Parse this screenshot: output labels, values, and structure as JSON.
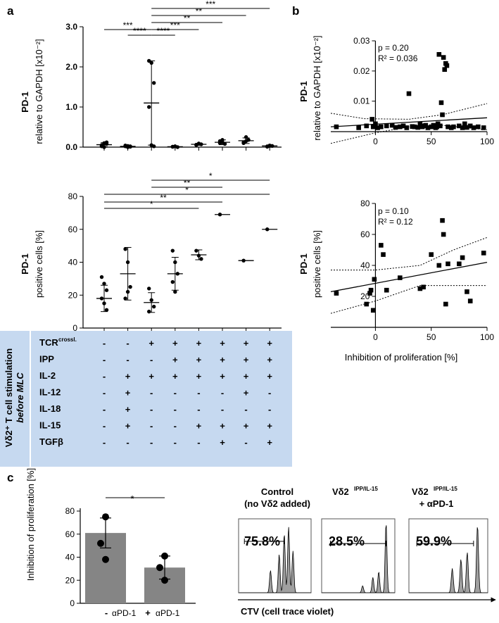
{
  "panels": {
    "a": "a",
    "b": "b",
    "c": "c"
  },
  "chart_data": [
    {
      "id": "a1",
      "type": "scatter",
      "title": "",
      "ylabel_bold": "PD-1",
      "ylabel": "relative to GAPDH [x10⁻²]",
      "yticks": [
        "0.0",
        "1.0",
        "2.0",
        "3.0"
      ],
      "ylim": [
        0,
        3.0
      ],
      "groups": [
        {
          "points": [
            0.05,
            0.1,
            0.12,
            0.02,
            0.0,
            0.08,
            0.03
          ],
          "mean": 0.06,
          "sd": 0.05
        },
        {
          "points": [
            0.02,
            0.03,
            0.01,
            0.04,
            0.0,
            0.02
          ],
          "mean": 0.02,
          "sd": 0.02
        },
        {
          "points": [
            2.15,
            2.1,
            1.6,
            1.0,
            0.05,
            0.02
          ],
          "mean": 1.1,
          "sd": 1.05
        },
        {
          "points": [
            0.01,
            0.02,
            0.0,
            0.01,
            0.02
          ],
          "mean": 0.01,
          "sd": 0.01
        },
        {
          "points": [
            0.06,
            0.09,
            0.07,
            0.05,
            0.08
          ],
          "mean": 0.07,
          "sd": 0.02
        },
        {
          "points": [
            0.1,
            0.18,
            0.08,
            0.15,
            0.12
          ],
          "mean": 0.12,
          "sd": 0.06
        },
        {
          "points": [
            0.12,
            0.25,
            0.18,
            0.1,
            0.15
          ],
          "mean": 0.16,
          "sd": 0.07
        },
        {
          "points": [
            0.02,
            0.04,
            0.03,
            0.01,
            0.03
          ],
          "mean": 0.03,
          "sd": 0.01
        }
      ],
      "significance": [
        {
          "from": 1,
          "to": 3,
          "label": "***"
        },
        {
          "from": 2,
          "to": 3,
          "label": "****"
        },
        {
          "from": 3,
          "to": 4,
          "label": "****"
        },
        {
          "from": 3,
          "to": 5,
          "label": "***"
        },
        {
          "from": 3,
          "to": 6,
          "label": "**"
        },
        {
          "from": 3,
          "to": 7,
          "label": "**"
        },
        {
          "from": 3,
          "to": 8,
          "label": "***"
        }
      ]
    },
    {
      "id": "a2",
      "type": "scatter",
      "ylabel_bold": "PD-1",
      "ylabel": "positive cells [%]",
      "yticks": [
        "0",
        "20",
        "40",
        "60",
        "80"
      ],
      "ylim": [
        0,
        80
      ],
      "groups": [
        {
          "points": [
            31,
            27,
            23,
            18,
            15,
            11
          ],
          "mean": 18,
          "sd": 8
        },
        {
          "points": [
            48,
            40,
            25,
            18,
            22
          ],
          "mean": 33,
          "sd": 16
        },
        {
          "points": [
            24,
            17,
            13,
            10
          ],
          "mean": 15.5,
          "sd": 6
        },
        {
          "points": [
            47,
            40,
            33,
            28,
            22
          ],
          "mean": 33,
          "sd": 10
        },
        {
          "points": [
            47,
            44,
            42
          ],
          "mean": 44.5,
          "sd": 3
        },
        {
          "points": [
            69
          ],
          "mean": 69,
          "sd": 0
        },
        {
          "points": [
            41
          ],
          "mean": 41,
          "sd": 0
        },
        {
          "points": [
            60
          ],
          "mean": 60,
          "sd": 0
        }
      ],
      "significance": [
        {
          "from": 1,
          "to": 5,
          "label": "*"
        },
        {
          "from": 1,
          "to": 6,
          "label": "**"
        },
        {
          "from": 1,
          "to": 8,
          "label": "*"
        },
        {
          "from": 3,
          "to": 6,
          "label": "**"
        },
        {
          "from": 3,
          "to": 8,
          "label": "*"
        }
      ]
    },
    {
      "id": "b1",
      "type": "scatter",
      "ylabel_bold": "PD-1",
      "ylabel": "relative to GAPDH [x10⁻²]",
      "yticks": [
        "0.01",
        "0.02",
        "0.03"
      ],
      "xticks": [
        "0",
        "50",
        "100"
      ],
      "ylim": [
        -0.0015,
        0.03
      ],
      "xlim": [
        -40,
        100
      ],
      "annot_p": "p = 0.20",
      "annot_r": "R² = 0.036",
      "points": [
        [
          -35,
          0.0015
        ],
        [
          -15,
          0.0012
        ],
        [
          -8,
          0.0018
        ],
        [
          -3,
          0.004
        ],
        [
          -2,
          0.0015
        ],
        [
          0,
          0.0025
        ],
        [
          2,
          0.0012
        ],
        [
          5,
          0.0015
        ],
        [
          10,
          0.0018
        ],
        [
          15,
          0.002
        ],
        [
          18,
          0.0013
        ],
        [
          22,
          0.0015
        ],
        [
          25,
          0.0018
        ],
        [
          28,
          0.0012
        ],
        [
          30,
          0.0125
        ],
        [
          33,
          0.0016
        ],
        [
          35,
          0.0015
        ],
        [
          38,
          0.0013
        ],
        [
          40,
          0.0025
        ],
        [
          42,
          0.0015
        ],
        [
          44,
          0.0018
        ],
        [
          45,
          0.002
        ],
        [
          47,
          0.0012
        ],
        [
          50,
          0.0015
        ],
        [
          52,
          0.002
        ],
        [
          54,
          0.0012
        ],
        [
          55,
          0.0015
        ],
        [
          56,
          0.0025
        ],
        [
          57,
          0.0255
        ],
        [
          58,
          0.0018
        ],
        [
          59,
          0.0095
        ],
        [
          60,
          0.0055
        ],
        [
          61,
          0.0245
        ],
        [
          62,
          0.0205
        ],
        [
          63,
          0.0225
        ],
        [
          64,
          0.0218
        ],
        [
          65,
          0.0015
        ],
        [
          68,
          0.0012
        ],
        [
          70,
          0.0015
        ],
        [
          75,
          0.0018
        ],
        [
          78,
          0.0012
        ],
        [
          80,
          0.0025
        ],
        [
          82,
          0.0013
        ],
        [
          85,
          0.0018
        ],
        [
          88,
          0.0012
        ],
        [
          92,
          0.0015
        ],
        [
          97,
          0.0012
        ]
      ],
      "fit": [
        [
          -40,
          0.0015
        ],
        [
          100,
          0.0045
        ]
      ],
      "ci_upper": [
        [
          -40,
          0.006
        ],
        [
          -10,
          0.0042
        ],
        [
          30,
          0.004
        ],
        [
          60,
          0.0055
        ],
        [
          100,
          0.0092
        ]
      ],
      "ci_lower": [
        [
          -40,
          -0.004
        ],
        [
          0,
          -0.0005
        ],
        [
          30,
          0.0015
        ],
        [
          60,
          0.002
        ],
        [
          100,
          0.0005
        ]
      ]
    },
    {
      "id": "b2",
      "type": "scatter",
      "ylabel_bold": "PD-1",
      "ylabel": "positive cells [%]",
      "yticks": [
        "20",
        "40",
        "60",
        "80"
      ],
      "xticks": [
        "0",
        "50",
        "100"
      ],
      "ylim": [
        0,
        80
      ],
      "xlim": [
        -40,
        100
      ],
      "xlabel": "Inhibition of proliferation [%]",
      "annot_p": "p = 0.10",
      "annot_r": "R² = 0.12",
      "points": [
        [
          -35,
          22
        ],
        [
          -8,
          15
        ],
        [
          -5,
          22
        ],
        [
          -4,
          24
        ],
        [
          -2,
          11
        ],
        [
          -1,
          31
        ],
        [
          5,
          53
        ],
        [
          7,
          47
        ],
        [
          10,
          24
        ],
        [
          22,
          32
        ],
        [
          40,
          25
        ],
        [
          43,
          26
        ],
        [
          50,
          47
        ],
        [
          57,
          40
        ],
        [
          60,
          69
        ],
        [
          61,
          60
        ],
        [
          63,
          15
        ],
        [
          65,
          41
        ],
        [
          75,
          41
        ],
        [
          78,
          45
        ],
        [
          82,
          23
        ],
        [
          85,
          17
        ],
        [
          97,
          48
        ]
      ],
      "fit": [
        [
          -40,
          23
        ],
        [
          100,
          42
        ]
      ],
      "ci_upper": [
        [
          -40,
          37
        ],
        [
          0,
          37
        ],
        [
          40,
          40
        ],
        [
          70,
          50
        ],
        [
          100,
          58
        ]
      ],
      "ci_lower": [
        [
          -40,
          9
        ],
        [
          0,
          17
        ],
        [
          40,
          27
        ],
        [
          70,
          27
        ],
        [
          100,
          27
        ]
      ]
    },
    {
      "id": "c1",
      "type": "bar",
      "ylabel": "Inhibition of proliferation [%]",
      "yticks": [
        "0",
        "20",
        "40",
        "60",
        "80"
      ],
      "ylim": [
        0,
        80
      ],
      "categories": [
        {
          "sign": "-",
          "label": "αPD-1"
        },
        {
          "sign": "+",
          "label": "αPD-1"
        }
      ],
      "values": [
        61,
        31
      ],
      "sd": [
        13,
        10
      ],
      "points": [
        [
          75,
          52,
          38
        ],
        [
          41,
          31,
          20
        ]
      ],
      "significance": "*"
    }
  ],
  "stimulation_table": {
    "side_label_1": "Vδ2⁺ T cell stimulation",
    "side_label_2": "before MLC",
    "rows": [
      {
        "label": "TCR",
        "label_sup": "crossl.",
        "values": [
          "-",
          "-",
          "+",
          "+",
          "+",
          "+",
          "+",
          "+"
        ]
      },
      {
        "label": "IPP",
        "label_sup": "",
        "values": [
          "-",
          "-",
          "-",
          "+",
          "+",
          "+",
          "+",
          "+"
        ]
      },
      {
        "label": "IL-2",
        "label_sup": "",
        "values": [
          "-",
          "+",
          "+",
          "+",
          "+",
          "+",
          "+",
          "+"
        ]
      },
      {
        "label": "IL-12",
        "label_sup": "",
        "values": [
          "-",
          "+",
          "-",
          "-",
          "-",
          "-",
          "+",
          "-"
        ]
      },
      {
        "label": "IL-18",
        "label_sup": "",
        "values": [
          "-",
          "+",
          "-",
          "-",
          "-",
          "-",
          "-",
          "-"
        ]
      },
      {
        "label": "IL-15",
        "label_sup": "",
        "values": [
          "-",
          "+",
          "-",
          "-",
          "+",
          "+",
          "+",
          "+"
        ]
      },
      {
        "label": "TGFβ",
        "label_sup": "",
        "values": [
          "-",
          "-",
          "-",
          "-",
          "-",
          "+",
          "-",
          "+"
        ]
      }
    ]
  },
  "flow": {
    "xlabel": "CTV (cell trace violet)",
    "panels": [
      {
        "title1": "Control",
        "title2": "(no Vδ2 added)",
        "title_sup": "",
        "title_line2_bold": "",
        "percent": "75.8%"
      },
      {
        "title1": "Vδ2",
        "title2": "",
        "title_sup": "IPP/IL-15",
        "title_line2_bold": "",
        "percent": "28.5%"
      },
      {
        "title1": "Vδ2",
        "title2": "",
        "title_sup": "IPP/IL-15",
        "title_line2_bold": "+ αPD-1",
        "percent": "59.9%"
      }
    ]
  },
  "colors": {
    "table_bg": "#c6d9f0",
    "bar": "#858585",
    "histo": "#a0a0a0"
  }
}
